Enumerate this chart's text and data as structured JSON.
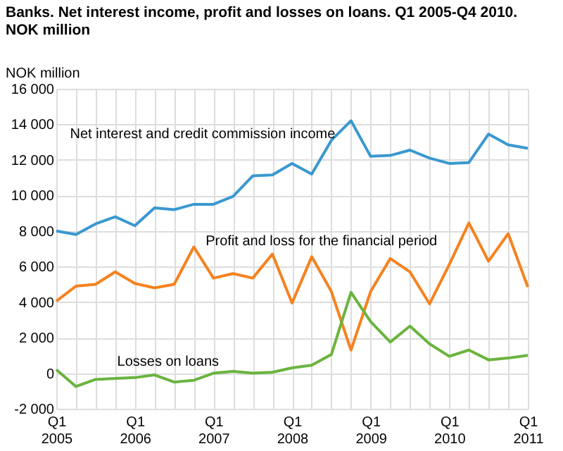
{
  "chart_data": {
    "type": "line",
    "title": [
      "Banks. Net interest income, profit and losses on loans. Q1 2005-Q4 2010.",
      "NOK million"
    ],
    "ylabel": "NOK million",
    "categories": [
      "Q1 2005",
      null,
      null,
      null,
      "Q1 2006",
      null,
      null,
      null,
      "Q1 2007",
      null,
      null,
      null,
      "Q1 2008",
      null,
      null,
      null,
      "Q1 2009",
      null,
      null,
      null,
      "Q1 2010",
      null,
      null,
      null,
      "Q1 2011"
    ],
    "series": [
      {
        "name": "Net interest and credit commission income",
        "color": "#3a98cf",
        "values": [
          8000,
          7800,
          8400,
          8800,
          8300,
          9300,
          9200,
          9500,
          9500,
          9950,
          11100,
          11150,
          11800,
          11200,
          13100,
          14200,
          12200,
          12250,
          12550,
          12100,
          11800,
          11850,
          13450,
          12850,
          12650
        ]
      },
      {
        "name": "Profit and loss for the financial period",
        "color": "#f5821f",
        "values": [
          4050,
          4900,
          5000,
          5700,
          5050,
          4800,
          5000,
          7100,
          5350,
          5600,
          5350,
          6700,
          3950,
          6550,
          4600,
          1300,
          4600,
          6450,
          5700,
          3900,
          6100,
          8450,
          6300,
          7850,
          4850
        ]
      },
      {
        "name": "Losses on loans",
        "color": "#6ab43e",
        "values": [
          200,
          -750,
          -350,
          -300,
          -250,
          -100,
          -500,
          -400,
          0,
          100,
          0,
          50,
          300,
          450,
          1050,
          4550,
          2900,
          1750,
          2650,
          1650,
          950,
          1300,
          750,
          850,
          1000
        ]
      }
    ],
    "ylim": [
      -2000,
      16000
    ],
    "yticks": [
      {
        "value": -2000,
        "label": "-2 000"
      },
      0,
      {
        "value": 2000,
        "label": "2 000"
      },
      {
        "value": 4000,
        "label": "4 000"
      },
      {
        "value": 6000,
        "label": "6 000"
      },
      {
        "value": 8000,
        "label": "8 000"
      },
      {
        "value": 10000,
        "label": "10 000"
      },
      {
        "value": 12000,
        "label": "12 000"
      },
      {
        "value": 14000,
        "label": "14 000"
      },
      {
        "value": 16000,
        "label": "16 000"
      }
    ],
    "grid": true,
    "legend": false,
    "marker": "none",
    "line_style": "solid"
  }
}
